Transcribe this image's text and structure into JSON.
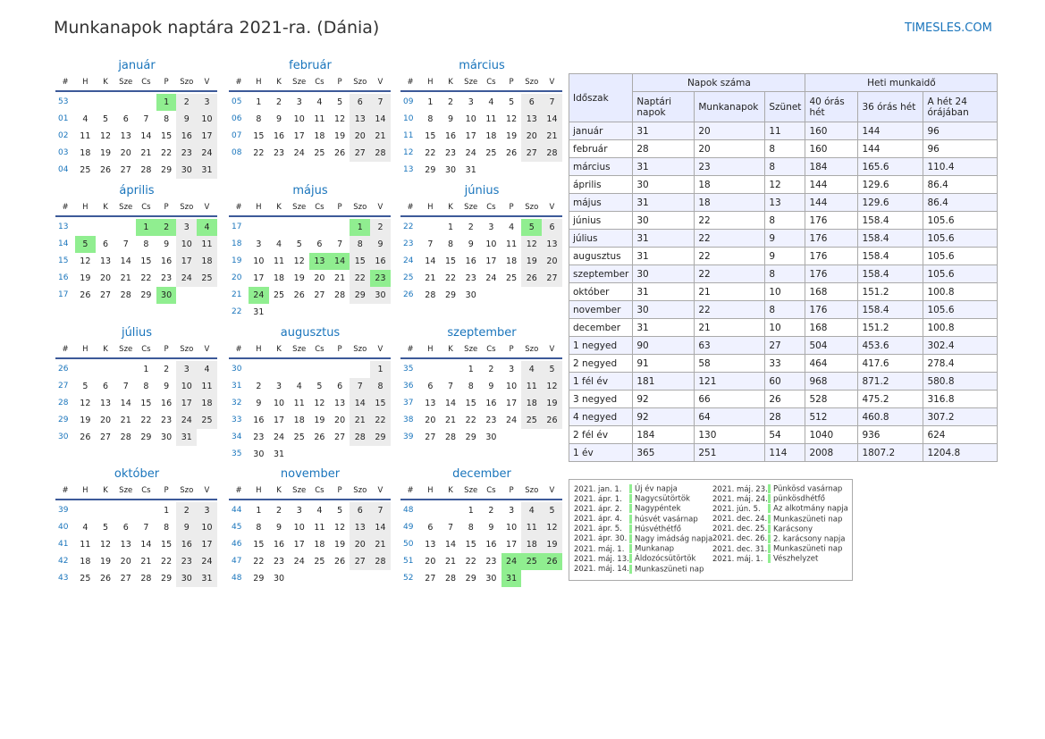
{
  "title": "Munkanapok naptára 2021-ra. (Dánia)",
  "brand": "TIMESLES.COM",
  "colors": {
    "accent": "#1a75bc",
    "holiday": "#90ee90",
    "weekend": "#ececec",
    "header_bg": "#e8ecff"
  },
  "weekday_headers": [
    "#",
    "H",
    "K",
    "Sze",
    "Cs",
    "P",
    "Szo",
    "V"
  ],
  "months": [
    {
      "name": "január",
      "weeks": [
        {
          "n": "53",
          "days": [
            "",
            "",
            "",
            "",
            "1",
            "2",
            "3"
          ]
        },
        {
          "n": "01",
          "days": [
            "4",
            "5",
            "6",
            "7",
            "8",
            "9",
            "10"
          ]
        },
        {
          "n": "02",
          "days": [
            "11",
            "12",
            "13",
            "14",
            "15",
            "16",
            "17"
          ]
        },
        {
          "n": "03",
          "days": [
            "18",
            "19",
            "20",
            "21",
            "22",
            "23",
            "24"
          ]
        },
        {
          "n": "04",
          "days": [
            "25",
            "26",
            "27",
            "28",
            "29",
            "30",
            "31"
          ]
        }
      ],
      "holidays": [
        "1"
      ]
    },
    {
      "name": "február",
      "weeks": [
        {
          "n": "05",
          "days": [
            "1",
            "2",
            "3",
            "4",
            "5",
            "6",
            "7"
          ]
        },
        {
          "n": "06",
          "days": [
            "8",
            "9",
            "10",
            "11",
            "12",
            "13",
            "14"
          ]
        },
        {
          "n": "07",
          "days": [
            "15",
            "16",
            "17",
            "18",
            "19",
            "20",
            "21"
          ]
        },
        {
          "n": "08",
          "days": [
            "22",
            "23",
            "24",
            "25",
            "26",
            "27",
            "28"
          ]
        }
      ],
      "holidays": []
    },
    {
      "name": "március",
      "weeks": [
        {
          "n": "09",
          "days": [
            "1",
            "2",
            "3",
            "4",
            "5",
            "6",
            "7"
          ]
        },
        {
          "n": "10",
          "days": [
            "8",
            "9",
            "10",
            "11",
            "12",
            "13",
            "14"
          ]
        },
        {
          "n": "11",
          "days": [
            "15",
            "16",
            "17",
            "18",
            "19",
            "20",
            "21"
          ]
        },
        {
          "n": "12",
          "days": [
            "22",
            "23",
            "24",
            "25",
            "26",
            "27",
            "28"
          ]
        },
        {
          "n": "13",
          "days": [
            "29",
            "30",
            "31",
            "",
            "",
            "",
            ""
          ]
        }
      ],
      "holidays": []
    },
    {
      "name": "április",
      "weeks": [
        {
          "n": "13",
          "days": [
            "",
            "",
            "",
            "1",
            "2",
            "3",
            "4"
          ]
        },
        {
          "n": "14",
          "days": [
            "5",
            "6",
            "7",
            "8",
            "9",
            "10",
            "11"
          ]
        },
        {
          "n": "15",
          "days": [
            "12",
            "13",
            "14",
            "15",
            "16",
            "17",
            "18"
          ]
        },
        {
          "n": "16",
          "days": [
            "19",
            "20",
            "21",
            "22",
            "23",
            "24",
            "25"
          ]
        },
        {
          "n": "17",
          "days": [
            "26",
            "27",
            "28",
            "29",
            "30",
            "",
            ""
          ]
        }
      ],
      "holidays": [
        "1",
        "2",
        "4",
        "5",
        "30"
      ]
    },
    {
      "name": "május",
      "weeks": [
        {
          "n": "17",
          "days": [
            "",
            "",
            "",
            "",
            "",
            "1",
            "2"
          ]
        },
        {
          "n": "18",
          "days": [
            "3",
            "4",
            "5",
            "6",
            "7",
            "8",
            "9"
          ]
        },
        {
          "n": "19",
          "days": [
            "10",
            "11",
            "12",
            "13",
            "14",
            "15",
            "16"
          ]
        },
        {
          "n": "20",
          "days": [
            "17",
            "18",
            "19",
            "20",
            "21",
            "22",
            "23"
          ]
        },
        {
          "n": "21",
          "days": [
            "24",
            "25",
            "26",
            "27",
            "28",
            "29",
            "30"
          ]
        },
        {
          "n": "22",
          "days": [
            "31",
            "",
            "",
            "",
            "",
            "",
            ""
          ]
        }
      ],
      "holidays": [
        "1",
        "13",
        "14",
        "23",
        "24"
      ]
    },
    {
      "name": "június",
      "weeks": [
        {
          "n": "22",
          "days": [
            "",
            "1",
            "2",
            "3",
            "4",
            "5",
            "6"
          ]
        },
        {
          "n": "23",
          "days": [
            "7",
            "8",
            "9",
            "10",
            "11",
            "12",
            "13"
          ]
        },
        {
          "n": "24",
          "days": [
            "14",
            "15",
            "16",
            "17",
            "18",
            "19",
            "20"
          ]
        },
        {
          "n": "25",
          "days": [
            "21",
            "22",
            "23",
            "24",
            "25",
            "26",
            "27"
          ]
        },
        {
          "n": "26",
          "days": [
            "28",
            "29",
            "30",
            "",
            "",
            "",
            ""
          ]
        }
      ],
      "holidays": [
        "5"
      ]
    },
    {
      "name": "július",
      "weeks": [
        {
          "n": "26",
          "days": [
            "",
            "",
            "",
            "1",
            "2",
            "3",
            "4"
          ]
        },
        {
          "n": "27",
          "days": [
            "5",
            "6",
            "7",
            "8",
            "9",
            "10",
            "11"
          ]
        },
        {
          "n": "28",
          "days": [
            "12",
            "13",
            "14",
            "15",
            "16",
            "17",
            "18"
          ]
        },
        {
          "n": "29",
          "days": [
            "19",
            "20",
            "21",
            "22",
            "23",
            "24",
            "25"
          ]
        },
        {
          "n": "30",
          "days": [
            "26",
            "27",
            "28",
            "29",
            "30",
            "31",
            ""
          ]
        }
      ],
      "holidays": []
    },
    {
      "name": "augusztus",
      "weeks": [
        {
          "n": "30",
          "days": [
            "",
            "",
            "",
            "",
            "",
            "",
            "1"
          ]
        },
        {
          "n": "31",
          "days": [
            "2",
            "3",
            "4",
            "5",
            "6",
            "7",
            "8"
          ]
        },
        {
          "n": "32",
          "days": [
            "9",
            "10",
            "11",
            "12",
            "13",
            "14",
            "15"
          ]
        },
        {
          "n": "33",
          "days": [
            "16",
            "17",
            "18",
            "19",
            "20",
            "21",
            "22"
          ]
        },
        {
          "n": "34",
          "days": [
            "23",
            "24",
            "25",
            "26",
            "27",
            "28",
            "29"
          ]
        },
        {
          "n": "35",
          "days": [
            "30",
            "31",
            "",
            "",
            "",
            "",
            ""
          ]
        }
      ],
      "holidays": []
    },
    {
      "name": "szeptember",
      "weeks": [
        {
          "n": "35",
          "days": [
            "",
            "",
            "1",
            "2",
            "3",
            "4",
            "5"
          ]
        },
        {
          "n": "36",
          "days": [
            "6",
            "7",
            "8",
            "9",
            "10",
            "11",
            "12"
          ]
        },
        {
          "n": "37",
          "days": [
            "13",
            "14",
            "15",
            "16",
            "17",
            "18",
            "19"
          ]
        },
        {
          "n": "38",
          "days": [
            "20",
            "21",
            "22",
            "23",
            "24",
            "25",
            "26"
          ]
        },
        {
          "n": "39",
          "days": [
            "27",
            "28",
            "29",
            "30",
            "",
            "",
            ""
          ]
        }
      ],
      "holidays": []
    },
    {
      "name": "október",
      "weeks": [
        {
          "n": "39",
          "days": [
            "",
            "",
            "",
            "",
            "1",
            "2",
            "3"
          ]
        },
        {
          "n": "40",
          "days": [
            "4",
            "5",
            "6",
            "7",
            "8",
            "9",
            "10"
          ]
        },
        {
          "n": "41",
          "days": [
            "11",
            "12",
            "13",
            "14",
            "15",
            "16",
            "17"
          ]
        },
        {
          "n": "42",
          "days": [
            "18",
            "19",
            "20",
            "21",
            "22",
            "23",
            "24"
          ]
        },
        {
          "n": "43",
          "days": [
            "25",
            "26",
            "27",
            "28",
            "29",
            "30",
            "31"
          ]
        }
      ],
      "holidays": []
    },
    {
      "name": "november",
      "weeks": [
        {
          "n": "44",
          "days": [
            "1",
            "2",
            "3",
            "4",
            "5",
            "6",
            "7"
          ]
        },
        {
          "n": "45",
          "days": [
            "8",
            "9",
            "10",
            "11",
            "12",
            "13",
            "14"
          ]
        },
        {
          "n": "46",
          "days": [
            "15",
            "16",
            "17",
            "18",
            "19",
            "20",
            "21"
          ]
        },
        {
          "n": "47",
          "days": [
            "22",
            "23",
            "24",
            "25",
            "26",
            "27",
            "28"
          ]
        },
        {
          "n": "48",
          "days": [
            "29",
            "30",
            "",
            "",
            "",
            "",
            ""
          ]
        }
      ],
      "holidays": []
    },
    {
      "name": "december",
      "weeks": [
        {
          "n": "48",
          "days": [
            "",
            "",
            "1",
            "2",
            "3",
            "4",
            "5"
          ]
        },
        {
          "n": "49",
          "days": [
            "6",
            "7",
            "8",
            "9",
            "10",
            "11",
            "12"
          ]
        },
        {
          "n": "50",
          "days": [
            "13",
            "14",
            "15",
            "16",
            "17",
            "18",
            "19"
          ]
        },
        {
          "n": "51",
          "days": [
            "20",
            "21",
            "22",
            "23",
            "24",
            "25",
            "26"
          ]
        },
        {
          "n": "52",
          "days": [
            "27",
            "28",
            "29",
            "30",
            "31",
            "",
            ""
          ]
        }
      ],
      "holidays": [
        "24",
        "25",
        "26",
        "31"
      ]
    }
  ],
  "summary": {
    "idoszak": "Időszak",
    "napok_szama": "Napok száma",
    "heti_munkaido": "Heti munkaidő",
    "cols": [
      "Naptári napok",
      "Munkanapok",
      "Szünet",
      "40 órás hét",
      "36 órás hét",
      "A hét 24 órájában"
    ],
    "rows": [
      [
        "január",
        "31",
        "20",
        "11",
        "160",
        "144",
        "96"
      ],
      [
        "február",
        "28",
        "20",
        "8",
        "160",
        "144",
        "96"
      ],
      [
        "március",
        "31",
        "23",
        "8",
        "184",
        "165.6",
        "110.4"
      ],
      [
        "április",
        "30",
        "18",
        "12",
        "144",
        "129.6",
        "86.4"
      ],
      [
        "május",
        "31",
        "18",
        "13",
        "144",
        "129.6",
        "86.4"
      ],
      [
        "június",
        "30",
        "22",
        "8",
        "176",
        "158.4",
        "105.6"
      ],
      [
        "július",
        "31",
        "22",
        "9",
        "176",
        "158.4",
        "105.6"
      ],
      [
        "augusztus",
        "31",
        "22",
        "9",
        "176",
        "158.4",
        "105.6"
      ],
      [
        "szeptember",
        "30",
        "22",
        "8",
        "176",
        "158.4",
        "105.6"
      ],
      [
        "október",
        "31",
        "21",
        "10",
        "168",
        "151.2",
        "100.8"
      ],
      [
        "november",
        "30",
        "22",
        "8",
        "176",
        "158.4",
        "105.6"
      ],
      [
        "december",
        "31",
        "21",
        "10",
        "168",
        "151.2",
        "100.8"
      ],
      [
        "1 negyed",
        "90",
        "63",
        "27",
        "504",
        "453.6",
        "302.4"
      ],
      [
        "2 negyed",
        "91",
        "58",
        "33",
        "464",
        "417.6",
        "278.4"
      ],
      [
        "1 fél év",
        "181",
        "121",
        "60",
        "968",
        "871.2",
        "580.8"
      ],
      [
        "3 negyed",
        "92",
        "66",
        "26",
        "528",
        "475.2",
        "316.8"
      ],
      [
        "4 negyed",
        "92",
        "64",
        "28",
        "512",
        "460.8",
        "307.2"
      ],
      [
        "2 fél év",
        "184",
        "130",
        "54",
        "1040",
        "936",
        "624"
      ],
      [
        "1 év",
        "365",
        "251",
        "114",
        "2008",
        "1807.2",
        "1204.8"
      ]
    ]
  },
  "holiday_list": [
    [
      [
        "2021. jan. 1.",
        "Új év napja"
      ],
      [
        "2021. ápr. 1.",
        "Nagycsütörtök"
      ],
      [
        "2021. ápr. 2.",
        "Nagypéntek"
      ],
      [
        "2021. ápr. 4.",
        "húsvét vasárnap"
      ],
      [
        "2021. ápr. 5.",
        "Húsvéthétfő"
      ],
      [
        "2021. ápr. 30.",
        "Nagy imádság napja"
      ],
      [
        "2021. máj. 1.",
        "Munkanap"
      ],
      [
        "2021. máj. 13.",
        "Áldozócsütörtök"
      ],
      [
        "2021. máj. 14.",
        "Munkaszüneti nap"
      ]
    ],
    [
      [
        "2021. máj. 23.",
        "Pünkösd vasárnap"
      ],
      [
        "2021. máj. 24.",
        "pünkösdhétfő"
      ],
      [
        "2021. jún. 5.",
        "Az alkotmány napja"
      ],
      [
        "2021. dec. 24.",
        "Munkaszüneti nap"
      ],
      [
        "2021. dec. 25.",
        "Karácsony"
      ],
      [
        "2021. dec. 26.",
        "2. karácsony napja"
      ],
      [
        "2021. dec. 31.",
        "Munkaszüneti nap"
      ],
      [
        "2021. máj. 1.",
        "Vészhelyzet"
      ]
    ]
  ]
}
